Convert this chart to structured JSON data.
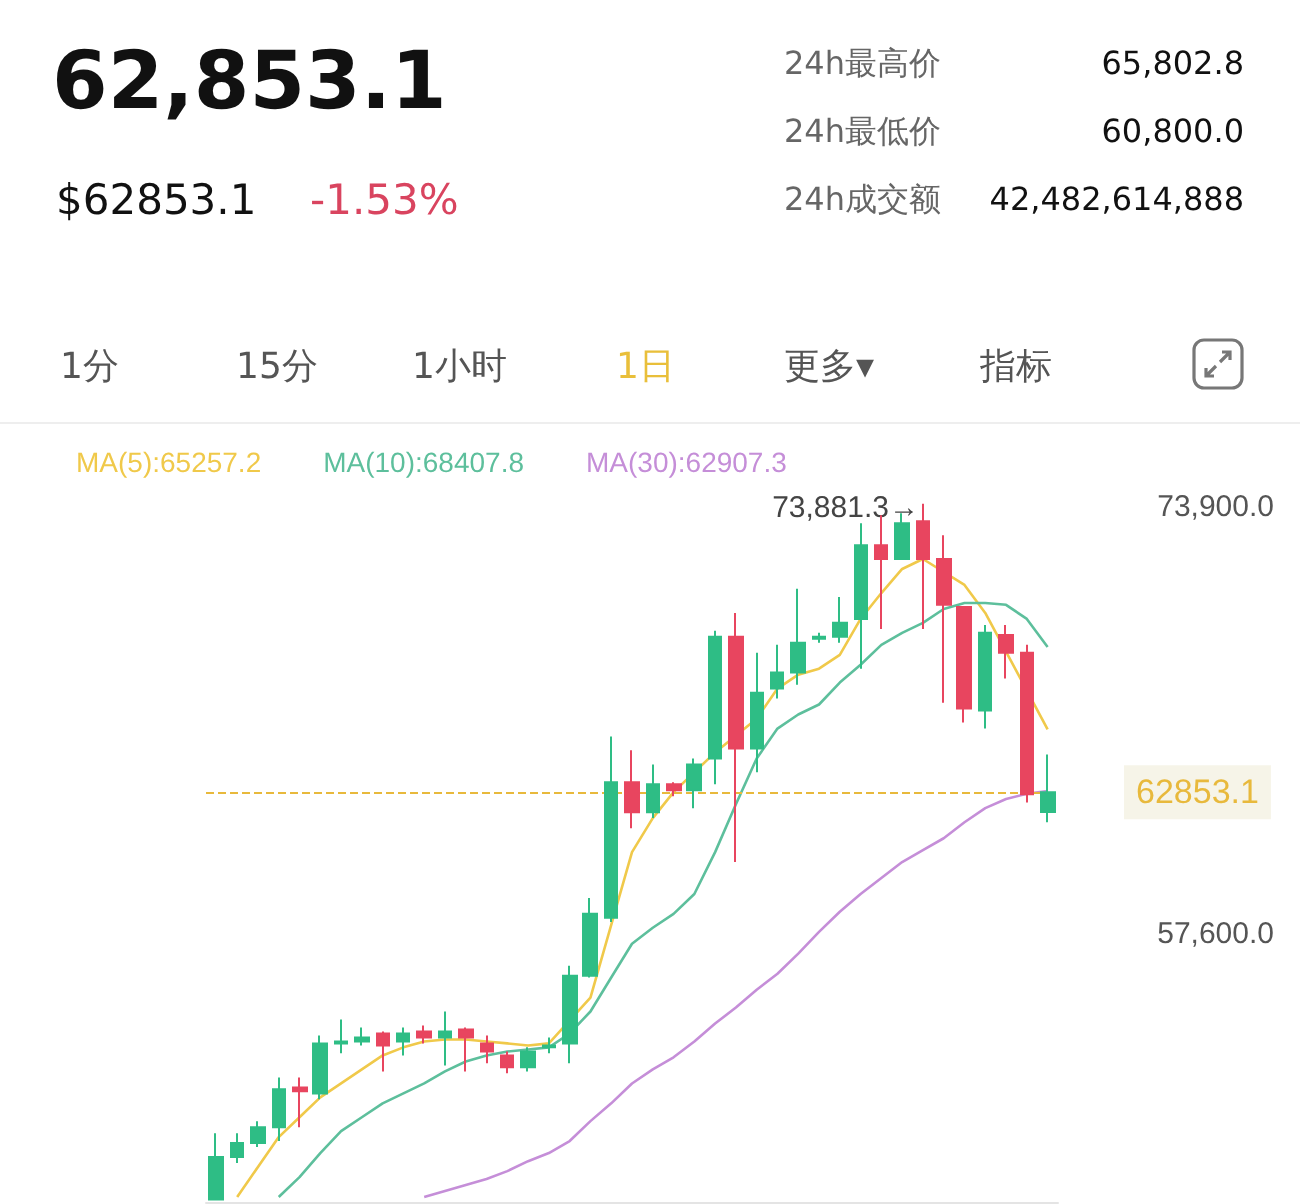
{
  "chart_data": {
    "type": "candlestick",
    "title": "62,853.1",
    "subtitle": "$62853.1",
    "annotations": [
      "-1.53%",
      "24h最高价",
      "65,802.8",
      "24h最低价",
      "60,800.0",
      "24h成交额",
      "42,482,614,888",
      "1分",
      "15分",
      "1小时",
      "1日",
      "更多▾",
      "指标",
      "73,881.3→"
    ],
    "categories": [
      null,
      null,
      null,
      null,
      null,
      null,
      null,
      null,
      null,
      null,
      null,
      null,
      null,
      null,
      null,
      null,
      null,
      null,
      null,
      null,
      null,
      null,
      null,
      null,
      null,
      null,
      null,
      null,
      null,
      null,
      null,
      null,
      null,
      null,
      null,
      null,
      null,
      null,
      null,
      null,
      null
    ],
    "series": [
      {
        "type": "candlestick",
        "ohlc": [
          [
            47300,
            49830,
            47300,
            48920
          ],
          [
            48920,
            49830,
            48690,
            49450
          ],
          [
            49450,
            50290,
            49300,
            50060
          ],
          [
            50060,
            51960,
            49530,
            51510
          ],
          [
            51580,
            51960,
            50060,
            51430
          ],
          [
            51350,
            53560,
            51130,
            53260
          ],
          [
            53260,
            54170,
            52880,
            53330
          ],
          [
            53330,
            53870,
            53180,
            53490
          ],
          [
            53640,
            53720,
            52190,
            53180
          ],
          [
            53330,
            53870,
            52800,
            53640
          ],
          [
            53720,
            53940,
            53260,
            53490
          ],
          [
            53490,
            54480,
            52420,
            53720
          ],
          [
            53790,
            53870,
            52190,
            53490
          ],
          [
            53260,
            53560,
            52500,
            52950
          ],
          [
            52800,
            52950,
            52120,
            52350
          ],
          [
            52350,
            53110,
            52190,
            52950
          ],
          [
            53110,
            53490,
            52880,
            53180
          ],
          [
            53260,
            56230,
            52500,
            55850
          ],
          [
            55850,
            58820,
            55780,
            58210
          ],
          [
            58060,
            64990,
            57900,
            63240
          ],
          [
            63240,
            64460,
            61480,
            62090
          ],
          [
            62090,
            63920,
            61870,
            63160
          ],
          [
            63160,
            63240,
            62700,
            62930
          ],
          [
            62930,
            64150,
            62250,
            63920
          ],
          [
            64150,
            69030,
            63160,
            68800
          ],
          [
            68800,
            69710,
            60190,
            64530
          ],
          [
            64530,
            68190,
            63620,
            66660
          ],
          [
            66820,
            68490,
            66440,
            67430
          ],
          [
            67430,
            70630,
            66970,
            68570
          ],
          [
            68720,
            68950,
            68570,
            68800
          ],
          [
            68800,
            70320,
            68570,
            69330
          ],
          [
            69480,
            73140,
            67580,
            72300
          ],
          [
            72300,
            73440,
            69100,
            71770
          ],
          [
            71770,
            73520,
            71770,
            73140
          ],
          [
            73210,
            73881.3,
            69100,
            71770
          ],
          [
            71770,
            72680,
            66280,
            70020
          ],
          [
            69940,
            69940,
            65520,
            66060
          ],
          [
            65980,
            69250,
            65290,
            68950
          ],
          [
            68870,
            69250,
            67200,
            68190
          ],
          [
            68190,
            68490,
            62470,
            62780
          ],
          [
            62100,
            64300,
            61710,
            62853.1
          ]
        ],
        "colors": [
          "#2ebd85",
          "#2ebd85",
          "#2ebd85",
          "#2ebd85",
          "#e8455f",
          "#2ebd85",
          "#2ebd85",
          "#2ebd85",
          "#e8455f",
          "#2ebd85",
          "#e8455f",
          "#2ebd85",
          "#e8455f",
          "#e8455f",
          "#e8455f",
          "#2ebd85",
          "#2ebd85",
          "#2ebd85",
          "#2ebd85",
          "#2ebd85",
          "#e8455f",
          "#2ebd85",
          "#e8455f",
          "#2ebd85",
          "#2ebd85",
          "#e8455f",
          "#2ebd85",
          "#2ebd85",
          "#2ebd85",
          "#2ebd85",
          "#2ebd85",
          "#2ebd85",
          "#e8455f",
          "#2ebd85",
          "#e8455f",
          "#e8455f",
          "#e8455f",
          "#2ebd85",
          "#e8455f",
          "#e8455f",
          "#2ebd85"
        ]
      },
      {
        "type": "line",
        "name": "MA(5):65257.2",
        "color": "#f0c94a",
        "values": [
          null,
          47390,
          48540,
          49680,
          50440,
          51200,
          51730,
          52270,
          52800,
          53110,
          53330,
          53410,
          53410,
          53330,
          53260,
          53180,
          53260,
          null,
          55010,
          null,
          60570,
          61870,
          62860,
          null,
          64380,
          null,
          65670,
          66820,
          67350,
          67580,
          68110,
          69480,
          70470,
          71390,
          71770,
          null,
          70780,
          69710,
          null,
          null,
          65257.2
        ]
      },
      {
        "type": "line",
        "name": "MA(10):68407.8",
        "color": "#5dbf9c",
        "values": [
          null,
          null,
          null,
          47390,
          48150,
          49070,
          49910,
          50440,
          50970,
          51350,
          51730,
          52190,
          52570,
          52800,
          52950,
          53030,
          53110,
          53640,
          54480,
          55780,
          57070,
          57680,
          58210,
          58970,
          60570,
          62400,
          64150,
          65290,
          65830,
          66210,
          67050,
          67730,
          68490,
          68950,
          69330,
          69860,
          70090,
          70090,
          70020,
          69480,
          68407.8
        ]
      },
      {
        "type": "line",
        "name": "MA(30):62907.3",
        "color": "#c58ed8",
        "values": [
          null,
          null,
          null,
          null,
          null,
          null,
          null,
          null,
          null,
          null,
          47390,
          47620,
          47850,
          48080,
          48380,
          48760,
          49070,
          49530,
          50290,
          50970,
          51730,
          52270,
          52730,
          53330,
          54020,
          54630,
          55310,
          55920,
          56690,
          57520,
          58290,
          58970,
          59580,
          60190,
          60650,
          61100,
          61710,
          62250,
          62600,
          62800,
          62907.3
        ]
      }
    ],
    "ylim": [
      47200,
      76700
    ],
    "yticks": [
      {
        "value": 73900,
        "label": "73,900.0"
      },
      {
        "value": 57600,
        "label": "57,600.0"
      }
    ],
    "tick_labels": "y",
    "legend": "top left",
    "ref_lines": [
      {
        "axis": "y",
        "value": 62853.1,
        "label": "62853.1",
        "color": "#e8b93c",
        "line_style": "dashed"
      }
    ]
  }
}
